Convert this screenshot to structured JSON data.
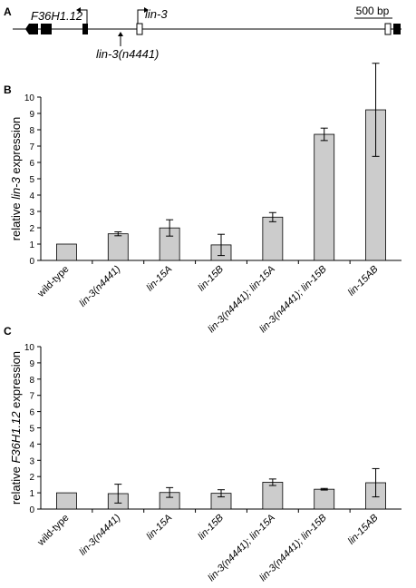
{
  "figure": {
    "panel_a": {
      "label": "A",
      "gene_left": "F36H1.12",
      "gene_right": "lin-3",
      "allele": "lin-3(n4441)",
      "scale_bar": "500 bp"
    }
  },
  "chart_data": [
    {
      "type": "bar",
      "panel_label": "B",
      "ylabel_pre": "relative ",
      "ylabel_italic": "lin-3",
      "ylabel_post": " expression",
      "ylim": [
        0,
        10
      ],
      "yticks": [
        "0",
        "1",
        "2",
        "3",
        "4",
        "5",
        "6",
        "7",
        "8",
        "9",
        "10"
      ],
      "grid": false,
      "categories": [
        "wild-type",
        "lin-3(n4441)",
        "lin-15A",
        "lin-15B",
        "lin-3(n4441); lin-15A",
        "lin-3(n4441); lin-15B",
        "lin-15AB"
      ],
      "values": [
        1.0,
        1.63,
        1.99,
        0.95,
        2.65,
        7.72,
        9.22
      ],
      "errors": [
        0,
        0.12,
        0.5,
        0.65,
        0.28,
        0.38,
        2.85
      ],
      "bar_color": "#cccccc"
    },
    {
      "type": "bar",
      "panel_label": "C",
      "ylabel_pre": "relative ",
      "ylabel_italic": "F36H1.12",
      "ylabel_post": " expression",
      "ylim": [
        0,
        10
      ],
      "yticks": [
        "0",
        "1",
        "2",
        "3",
        "4",
        "5",
        "6",
        "7",
        "8",
        "9",
        "10"
      ],
      "grid": false,
      "categories": [
        "wild-type",
        "lin-3(n4441)",
        "lin-15A",
        "lin-15B",
        "lin-3(n4441); lin-15A",
        "lin-3(n4441); lin-15B",
        "lin-15AB"
      ],
      "values": [
        1.0,
        0.95,
        1.02,
        0.97,
        1.65,
        1.22,
        1.62
      ],
      "errors": [
        0,
        0.58,
        0.3,
        0.22,
        0.2,
        0.05,
        0.87
      ],
      "bar_color": "#cccccc"
    }
  ]
}
